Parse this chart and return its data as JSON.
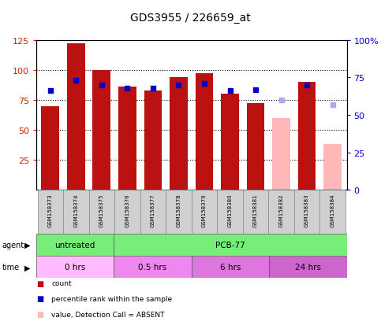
{
  "title": "GDS3955 / 226659_at",
  "samples": [
    "GSM158373",
    "GSM158374",
    "GSM158375",
    "GSM158376",
    "GSM158377",
    "GSM158378",
    "GSM158379",
    "GSM158380",
    "GSM158381",
    "GSM158382",
    "GSM158383",
    "GSM158384"
  ],
  "count_values": [
    70,
    122,
    100,
    86,
    83,
    94,
    97,
    80,
    72,
    60,
    90,
    38
  ],
  "count_absent": [
    false,
    false,
    false,
    false,
    false,
    false,
    false,
    false,
    false,
    true,
    false,
    true
  ],
  "rank_values": [
    66,
    73,
    70,
    68,
    68,
    70,
    71,
    66,
    67,
    60,
    70,
    57
  ],
  "rank_absent": [
    false,
    false,
    false,
    false,
    false,
    false,
    false,
    false,
    false,
    true,
    false,
    true
  ],
  "bar_color_normal": "#bb1111",
  "bar_color_absent": "#ffb8b8",
  "rank_color_normal": "#0000cc",
  "rank_color_absent": "#aaaaee",
  "ylim_left": [
    0,
    125
  ],
  "ylim_right": [
    0,
    100
  ],
  "yticks_left": [
    25,
    50,
    75,
    100,
    125
  ],
  "ytick_labels_left": [
    "25",
    "50",
    "75",
    "100",
    "125"
  ],
  "yticks_right": [
    0,
    25,
    50,
    75,
    100
  ],
  "ytick_labels_right": [
    "0",
    "25",
    "50",
    "75",
    "100%"
  ],
  "agent_groups": [
    {
      "label": "untreated",
      "start": 0,
      "end": 3,
      "color": "#77ee77"
    },
    {
      "label": "PCB-77",
      "start": 3,
      "end": 12,
      "color": "#77ee77"
    }
  ],
  "time_groups": [
    {
      "label": "0 hrs",
      "start": 0,
      "end": 3,
      "color": "#ffbbff"
    },
    {
      "label": "0.5 hrs",
      "start": 3,
      "end": 6,
      "color": "#ee88ee"
    },
    {
      "label": "6 hrs",
      "start": 6,
      "end": 9,
      "color": "#dd77dd"
    },
    {
      "label": "24 hrs",
      "start": 9,
      "end": 12,
      "color": "#cc66cc"
    }
  ],
  "legend_items": [
    {
      "label": "count",
      "color": "#bb1111"
    },
    {
      "label": "percentile rank within the sample",
      "color": "#0000cc"
    },
    {
      "label": "value, Detection Call = ABSENT",
      "color": "#ffb8b8"
    },
    {
      "label": "rank, Detection Call = ABSENT",
      "color": "#aaaaee"
    }
  ],
  "label_color_left": "#cc2200",
  "label_color_right": "#0000cc",
  "right_axis_top_label": "100%"
}
